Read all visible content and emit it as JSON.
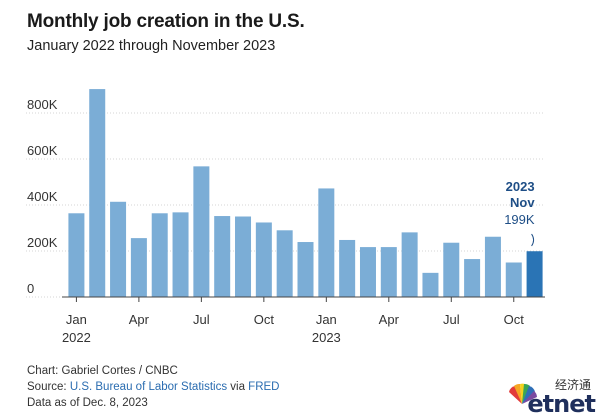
{
  "title": "Monthly job creation in the U.S.",
  "subtitle": "January 2022 through November 2023",
  "chart_data": {
    "type": "bar",
    "categories": [
      "Jan 2022",
      "Feb 2022",
      "Mar 2022",
      "Apr 2022",
      "May 2022",
      "Jun 2022",
      "Jul 2022",
      "Aug 2022",
      "Sep 2022",
      "Oct 2022",
      "Nov 2022",
      "Dec 2022",
      "Jan 2023",
      "Feb 2023",
      "Mar 2023",
      "Apr 2023",
      "May 2023",
      "Jun 2023",
      "Jul 2023",
      "Aug 2023",
      "Sep 2023",
      "Oct 2023",
      "Nov 2023"
    ],
    "values": [
      364,
      904,
      414,
      256,
      364,
      368,
      568,
      352,
      350,
      324,
      290,
      239,
      472,
      248,
      217,
      217,
      281,
      105,
      236,
      165,
      262,
      150,
      199
    ],
    "ylim": [
      0,
      900
    ],
    "yticks": [
      0,
      200,
      400,
      600,
      800
    ],
    "ytick_labels": [
      "0",
      "200K",
      "400K",
      "600K",
      "800K"
    ],
    "xtick_labels": [
      {
        "index": 0,
        "month": "Jan",
        "year": "2022"
      },
      {
        "index": 3,
        "month": "Apr",
        "year": ""
      },
      {
        "index": 6,
        "month": "Jul",
        "year": ""
      },
      {
        "index": 9,
        "month": "Oct",
        "year": ""
      },
      {
        "index": 12,
        "month": "Jan",
        "year": "2023"
      },
      {
        "index": 15,
        "month": "Apr",
        "year": ""
      },
      {
        "index": 18,
        "month": "Jul",
        "year": ""
      },
      {
        "index": 21,
        "month": "Oct",
        "year": ""
      }
    ],
    "annotation": {
      "year": "2023",
      "month": "Nov",
      "value": "199K"
    },
    "bar_color": "#7badd6",
    "highlight_color": "#2a74b5",
    "grid": true
  },
  "footer": {
    "line1": "Chart: Gabriel Cortes / CNBC",
    "source_prefix": "Source: ",
    "source_link1": "U.S. Bureau of Labor Statistics",
    "source_via": " via ",
    "source_link2": "FRED",
    "line3": "Data as of Dec. 8, 2023"
  },
  "logo": {
    "cjk": "经济通",
    "word": "etnet",
    "brand": "CNBC"
  }
}
